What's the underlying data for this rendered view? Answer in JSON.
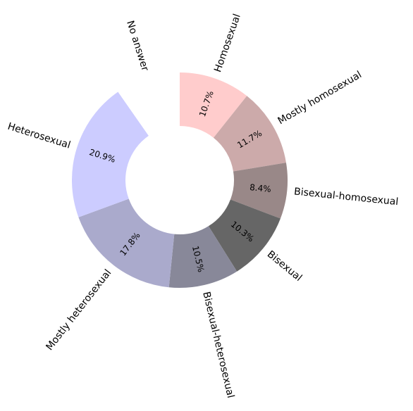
{
  "chart_data": {
    "type": "pie",
    "style": "donut",
    "start": "top, clockwise",
    "slices": [
      {
        "label": "Homosexual",
        "value": 10.7,
        "value_label": "10.7%",
        "color": "#ffcccc"
      },
      {
        "label": "Mostly homosexual",
        "value": 11.7,
        "value_label": "11.7%",
        "color": "#ccaaaa"
      },
      {
        "label": "Bisexual-homosexual",
        "value": 8.4,
        "value_label": "8.4%",
        "color": "#998888"
      },
      {
        "label": "Bisexual",
        "value": 10.3,
        "value_label": "10.3%",
        "color": "#666666"
      },
      {
        "label": "Bisexual-heterosexual",
        "value": 10.5,
        "value_label": "10.5%",
        "color": "#888899"
      },
      {
        "label": "Mostly heterosexual",
        "value": 17.8,
        "value_label": "17.8%",
        "color": "#aaaacc"
      },
      {
        "label": "Heterosexual",
        "value": 20.9,
        "value_label": "20.9%",
        "color": "#ccccff"
      },
      {
        "label": "No answer",
        "value": 9.7,
        "value_label": "",
        "color": "#ffffff"
      }
    ]
  }
}
